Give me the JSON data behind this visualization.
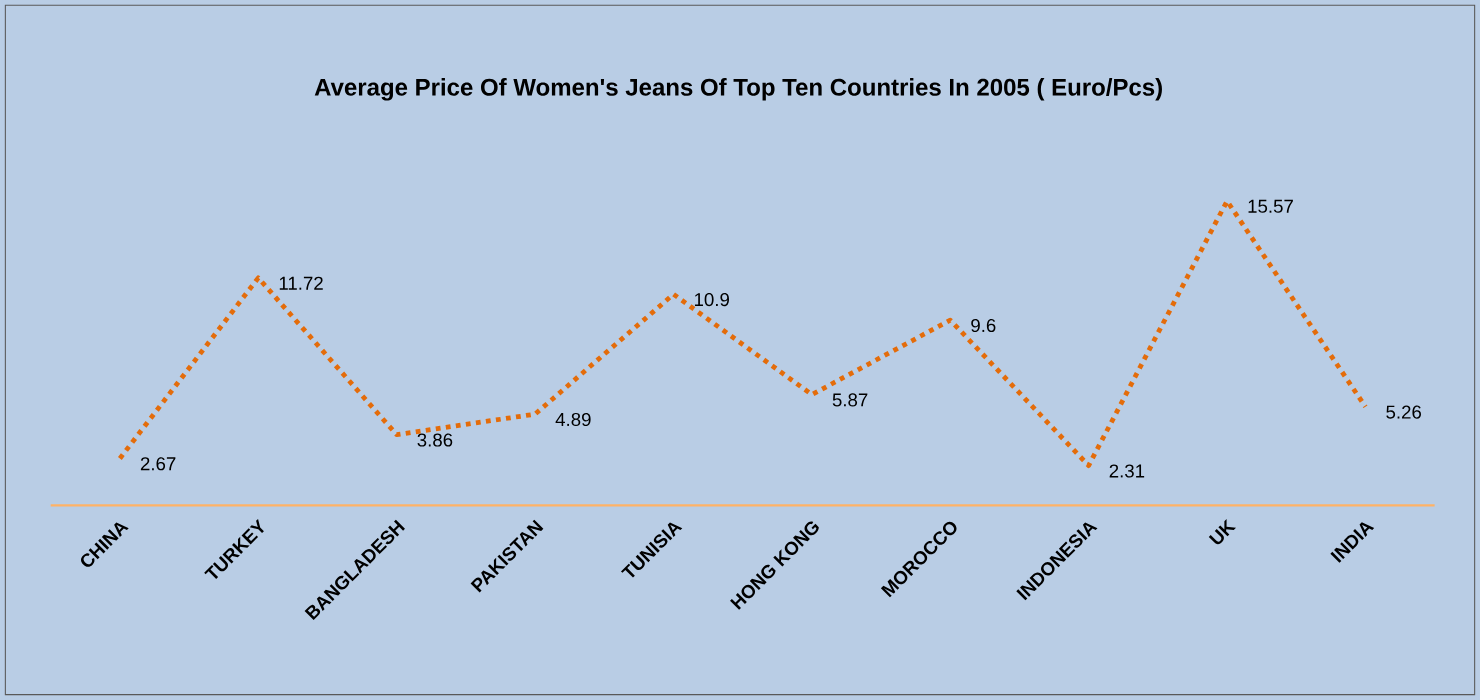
{
  "chart_data": {
    "type": "line",
    "title": "Average Price Of Women's Jeans Of Top Ten Countries In 2005 ( Euro/Pcs)",
    "categories": [
      "CHINA",
      "TURKEY",
      "BANGLADESH",
      "PAKISTAN",
      "TUNISIA",
      "HONG KONG",
      "MOROCCO",
      "INDONESIA",
      "UK",
      "INDIA"
    ],
    "values": [
      2.67,
      11.72,
      3.86,
      4.89,
      10.9,
      5.87,
      9.6,
      2.31,
      15.57,
      5.26
    ],
    "color": "#e46c0a",
    "line_style": "dotted",
    "data_labels": true,
    "tick_labels": "x"
  }
}
